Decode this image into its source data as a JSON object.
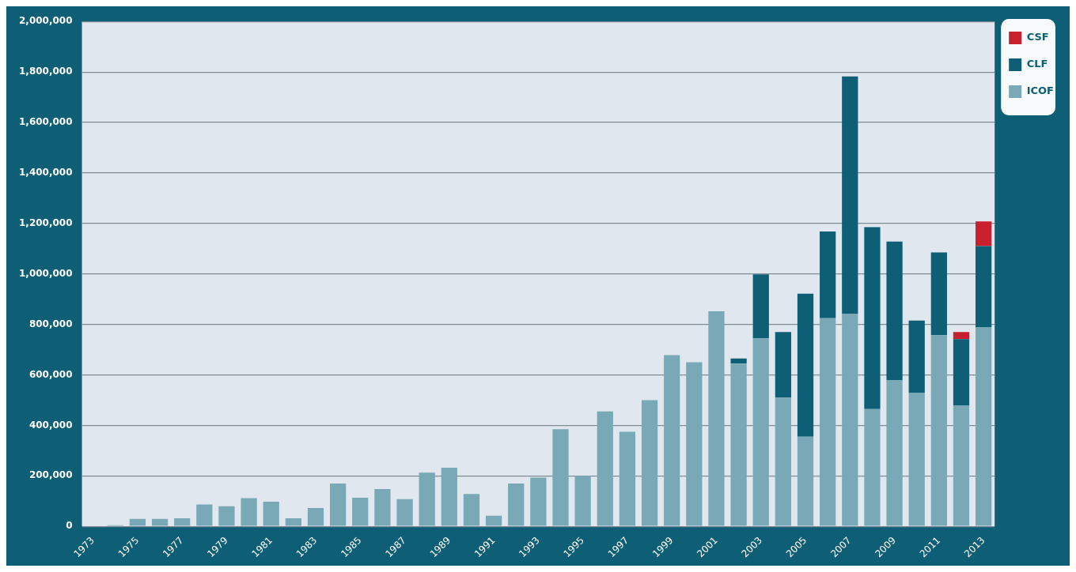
{
  "chart_data": {
    "type": "bar",
    "stacked": true,
    "categories": [
      "1973",
      null,
      "1975",
      null,
      "1977",
      null,
      "1979",
      null,
      "1981",
      null,
      "1983",
      null,
      "1985",
      null,
      "1987",
      null,
      "1989",
      null,
      "1991",
      null,
      "1993",
      null,
      "1995",
      null,
      "1997",
      null,
      "1999",
      null,
      "2001",
      null,
      "2003",
      null,
      "2005",
      null,
      "2007",
      null,
      "2009",
      null,
      "2011",
      null,
      "2013"
    ],
    "series": [
      {
        "name": "ICOF",
        "color": "#79a9b6",
        "values": [
          null,
          5000,
          30000,
          30000,
          32000,
          87000,
          80000,
          112000,
          98000,
          32000,
          73000,
          170000,
          113000,
          148000,
          108000,
          213000,
          232000,
          128000,
          42000,
          170000,
          193000,
          385000,
          200000,
          455000,
          375000,
          500000,
          678000,
          650000,
          852000,
          645000,
          745000,
          510000,
          355000,
          825000,
          843000,
          465000,
          578000,
          528000,
          757000,
          478000,
          788000
        ]
      },
      {
        "name": "CLF",
        "color": "#0e5e75",
        "values": [
          null,
          null,
          null,
          null,
          null,
          null,
          null,
          null,
          null,
          null,
          null,
          null,
          null,
          null,
          null,
          null,
          null,
          null,
          null,
          null,
          null,
          null,
          null,
          null,
          null,
          null,
          null,
          null,
          null,
          20000,
          253000,
          260000,
          567000,
          343000,
          939000,
          720000,
          550000,
          287000,
          328000,
          264000,
          322000
        ]
      },
      {
        "name": "CSF",
        "color": "#c8202f",
        "values": [
          null,
          null,
          null,
          null,
          null,
          null,
          null,
          null,
          null,
          null,
          null,
          null,
          null,
          null,
          null,
          null,
          null,
          null,
          null,
          null,
          null,
          null,
          null,
          null,
          null,
          null,
          null,
          null,
          null,
          null,
          null,
          null,
          null,
          null,
          null,
          null,
          null,
          null,
          null,
          28000,
          98000
        ]
      }
    ],
    "ylim": [
      0,
      2000000
    ],
    "yticks": [
      0,
      {
        "value": 200000,
        "label": "200,000"
      },
      {
        "value": 400000,
        "label": "400,000"
      },
      {
        "value": 600000,
        "label": "600,000"
      },
      {
        "value": 800000,
        "label": "800,000"
      },
      {
        "value": 1000000,
        "label": "1,000,000"
      },
      {
        "value": 1200000,
        "label": "1,200,000"
      },
      {
        "value": 1400000,
        "label": "1,400,000"
      },
      {
        "value": 1600000,
        "label": "1,600,000"
      },
      {
        "value": 1800000,
        "label": "1,800,000"
      },
      {
        "value": 2000000,
        "label": "2,000,000"
      }
    ],
    "grid": "y",
    "legend": "top right"
  }
}
